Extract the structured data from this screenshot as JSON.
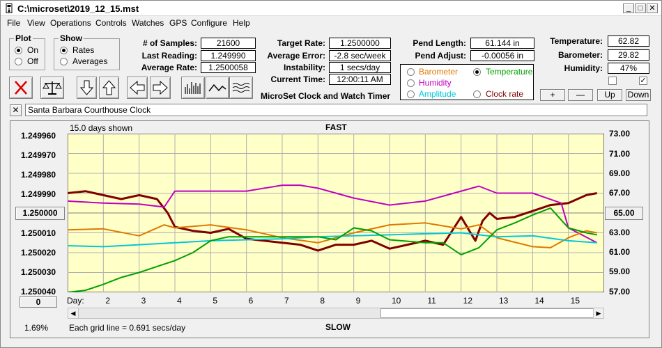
{
  "window": {
    "title": "C:\\microset\\2019_12_15.mst"
  },
  "menu": [
    "File",
    "View",
    "Operations",
    "Controls",
    "Watches",
    "GPS",
    "Configure",
    "Help"
  ],
  "plot_group": {
    "title": "Plot",
    "on": "On",
    "off": "Off",
    "selected": "On"
  },
  "show_group": {
    "title": "Show",
    "rates": "Rates",
    "averages": "Averages",
    "selected": "Rates"
  },
  "stats": {
    "samples_label": "# of Samples:",
    "samples": "21600",
    "last_reading_label": "Last Reading:",
    "last_reading": "1.249990",
    "average_rate_label": "Average Rate:",
    "average_rate": "1.2500058",
    "target_rate_label": "Target Rate:",
    "target_rate": "1.2500000",
    "average_error_label": "Average Error:",
    "average_error": "-2.8 sec/week",
    "instability_label": "Instability:",
    "instability": "1 secs/day",
    "current_time_label": "Current Time:",
    "current_time": "12:00:11 AM",
    "pend_length_label": "Pend Length:",
    "pend_length": "61.144 in",
    "pend_adjust_label": "Pend Adjust:",
    "pend_adjust": "-0.00056 in",
    "temperature_label": "Temperature:",
    "temperature": "62.82",
    "barometer_label": "Barometer:",
    "barometer": "29.82",
    "humidity_label": "Humidity:",
    "humidity": "47%"
  },
  "app_caption": "MicroSet Clock and Watch Timer",
  "sensor_options": {
    "barometer": "Barometer",
    "temperature": "Temperature",
    "humidity": "Humidity",
    "amplitude": "Amplitude",
    "clock_rate": "Clock rate",
    "selected": "Temperature",
    "colors": {
      "barometer": "#e07800",
      "temperature": "#00a000",
      "humidity": "#c000c0",
      "amplitude": "#00c8d8",
      "clock_rate": "#800000"
    }
  },
  "scale_buttons": {
    "plus": "+",
    "minus": "—",
    "up": "Up",
    "down": "Down"
  },
  "clock_name": "Santa Barbara Courthouse Clock",
  "close_x": "✕",
  "chart": {
    "days_shown": "15.0 days shown",
    "top_label": "FAST",
    "bottom_label": "SLOW",
    "grid_note": "Each grid line = 0.691 secs/day",
    "percent": "1.69%",
    "day_prefix": "Day:",
    "left_button": "0",
    "center_button": "1.250000",
    "right_button": "65.00",
    "left_ticks": [
      "1.249960",
      "1.249970",
      "1.249980",
      "1.249990",
      "1.250010",
      "1.250020",
      "1.250030",
      "1.250040"
    ],
    "right_ticks": [
      "73.00",
      "71.00",
      "69.00",
      "67.00",
      "63.00",
      "61.00",
      "59.00",
      "57.00"
    ],
    "day_ticks": [
      "2",
      "3",
      "4",
      "5",
      "6",
      "7",
      "8",
      "9",
      "10",
      "11",
      "12",
      "13",
      "14",
      "15"
    ]
  },
  "chart_data": {
    "type": "line",
    "x_unit": "day",
    "x_range": [
      1,
      16
    ],
    "y_left_range": [
      1.24996,
      1.25004
    ],
    "y_right_range": [
      57,
      73
    ],
    "series": [
      {
        "name": "Clock rate",
        "axis": "left",
        "color": "#800000",
        "x": [
          1,
          1.5,
          2,
          2.5,
          3,
          3.5,
          3.8,
          4,
          4.5,
          5,
          5.5,
          6,
          6.5,
          7,
          7.5,
          8,
          8.5,
          9,
          9.5,
          10,
          10.5,
          11,
          11.5,
          12,
          12.2,
          12.4,
          12.6,
          12.8,
          13,
          13.5,
          14,
          14.5,
          15,
          15.5,
          15.8
        ],
        "y": [
          1.24999,
          1.249989,
          1.249991,
          1.249993,
          1.249991,
          1.249993,
          1.25,
          1.250007,
          1.250009,
          1.25001,
          1.250008,
          1.250013,
          1.250014,
          1.250015,
          1.250016,
          1.250019,
          1.250016,
          1.250016,
          1.250014,
          1.250018,
          1.250016,
          1.250014,
          1.250016,
          1.250002,
          1.250008,
          1.250014,
          1.250004,
          1.25,
          1.250003,
          1.250002,
          1.249999,
          1.249996,
          1.249995,
          1.249991,
          1.24999
        ]
      },
      {
        "name": "Humidity",
        "axis": "right",
        "color": "#c000c0",
        "x": [
          1,
          2,
          3,
          3.7,
          4,
          5,
          6,
          7,
          7.5,
          8,
          9,
          10,
          11,
          12,
          12.5,
          13,
          14,
          14.8,
          15,
          15.8
        ],
        "y": [
          66.2,
          66.0,
          65.9,
          65.6,
          67.2,
          67.2,
          67.2,
          67.8,
          67.8,
          67.5,
          66.5,
          65.8,
          66.2,
          67.2,
          67.7,
          67.0,
          67.0,
          66.0,
          63.5,
          62.0
        ]
      },
      {
        "name": "Barometer",
        "axis": "right",
        "color": "#e07800",
        "x": [
          1,
          2,
          3,
          3.7,
          4,
          5,
          6,
          7,
          8,
          9,
          10,
          11,
          12,
          12.5,
          13,
          14,
          14.5,
          15,
          15.5,
          15.8
        ],
        "y": [
          63.3,
          63.4,
          62.7,
          63.8,
          63.5,
          63.8,
          63.3,
          62.5,
          62.0,
          63.0,
          63.8,
          64.0,
          63.4,
          63.8,
          62.5,
          61.6,
          61.5,
          62.5,
          63.2,
          63.0
        ]
      },
      {
        "name": "Amplitude",
        "axis": "right",
        "color": "#00c8d8",
        "x": [
          1,
          2,
          3,
          4,
          5,
          6,
          7,
          8,
          9,
          10,
          11,
          12,
          13,
          14,
          15,
          15.8
        ],
        "y": [
          61.7,
          61.6,
          61.8,
          62.0,
          62.2,
          62.3,
          62.4,
          62.6,
          62.7,
          62.8,
          62.9,
          63.0,
          62.6,
          62.7,
          62.2,
          62.0
        ]
      },
      {
        "name": "Temperature",
        "axis": "right",
        "color": "#00a000",
        "x": [
          1,
          1.5,
          2,
          2.5,
          3,
          3.5,
          4,
          4.5,
          5,
          5.5,
          6,
          7,
          8,
          8.5,
          9,
          9.5,
          10,
          11,
          11.5,
          12,
          12.5,
          13,
          13.5,
          14,
          14.5,
          15,
          15.5,
          15.8
        ],
        "y": [
          57.0,
          57.2,
          57.8,
          58.5,
          59.0,
          59.6,
          60.2,
          61.0,
          62.2,
          62.6,
          62.6,
          62.6,
          62.6,
          62.3,
          63.5,
          63.2,
          62.3,
          62.0,
          62.0,
          60.8,
          61.5,
          63.3,
          64.0,
          64.8,
          65.5,
          63.5,
          63.0,
          62.8
        ]
      }
    ]
  }
}
